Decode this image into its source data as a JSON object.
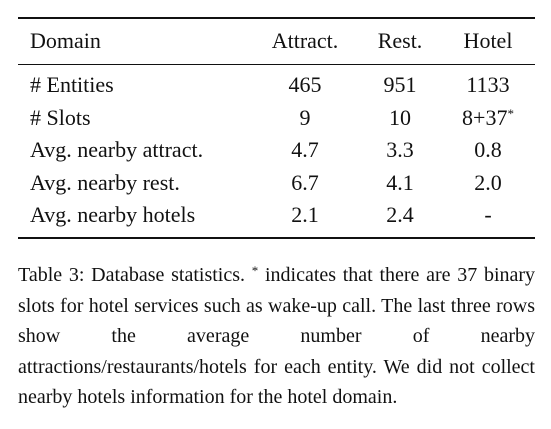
{
  "table": {
    "header": [
      "Domain",
      "Attract.",
      "Rest.",
      "Hotel"
    ],
    "rows": [
      [
        "# Entities",
        "465",
        "951",
        "1133"
      ],
      [
        "# Slots",
        "9",
        "10",
        {
          "text": "8+37",
          "sup": "*"
        }
      ],
      [
        "Avg. nearby attract.",
        "4.7",
        "3.3",
        "0.8"
      ],
      [
        "Avg. nearby rest.",
        "6.7",
        "4.1",
        "2.0"
      ],
      [
        "Avg. nearby hotels",
        "2.1",
        "2.4",
        "-"
      ]
    ]
  },
  "caption": {
    "label": "Table 3:",
    "lead": "Database statistics.",
    "sup": "*",
    "text": "indicates that there are 37 binary slots for hotel services such as wake-up call. The last three rows show the average number of nearby attractions/restaurants/hotels for each entity.  We did not collect nearby hotels information for the hotel domain."
  }
}
